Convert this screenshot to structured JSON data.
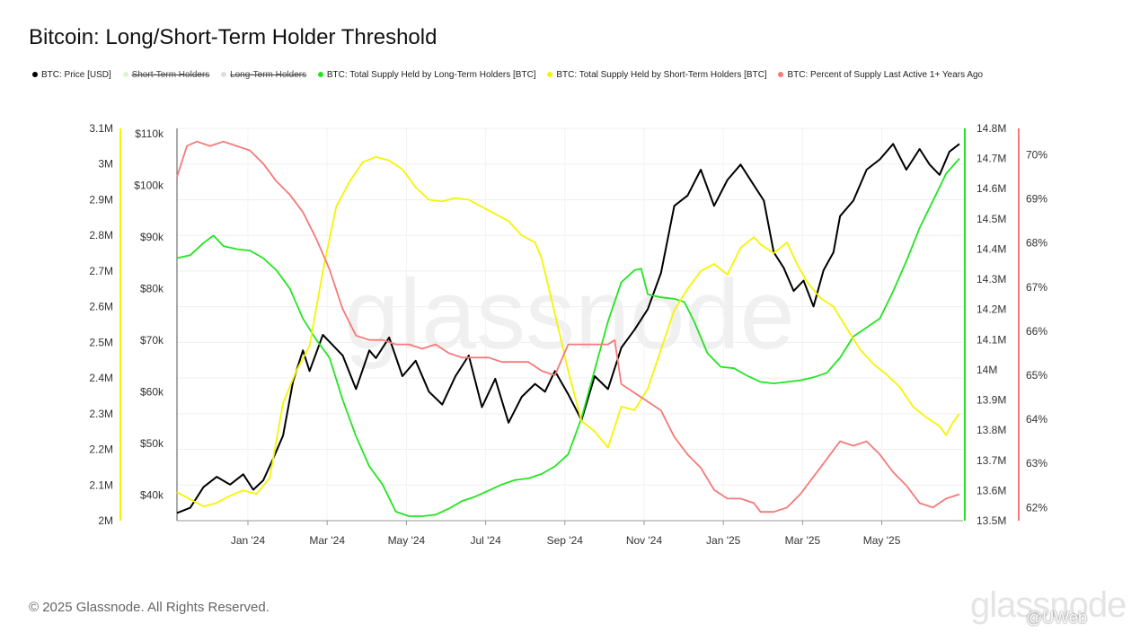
{
  "title": "Bitcoin: Long/Short-Term Holder Threshold",
  "footer": "© 2025 Glassnode. All Rights Reserved.",
  "brand_watermark": "glassnode",
  "uweb_badge": "@UWeb",
  "legend": [
    {
      "label": "BTC: Price [USD]",
      "color": "#000000",
      "active": true
    },
    {
      "label": "Short-Term Holders",
      "color": "#d8f5cc",
      "active": false
    },
    {
      "label": "Long-Term Holders",
      "color": "#dddddd",
      "active": false
    },
    {
      "label": "BTC: Total Supply Held by Long-Term Holders [BTC]",
      "color": "#22e522",
      "active": true
    },
    {
      "label": "BTC: Total Supply Held by Short-Term Holders [BTC]",
      "color": "#f5f500",
      "active": true
    },
    {
      "label": "BTC: Percent of Supply Last Active 1+ Years Ago",
      "color": "#f47a7a",
      "active": true
    }
  ],
  "chart_data": {
    "type": "line",
    "x_ticks": [
      "Jan '24",
      "Mar '24",
      "May '24",
      "Jul '24",
      "Sep '24",
      "Nov '24",
      "Jan '25",
      "Mar '25",
      "May '25"
    ],
    "axes": {
      "sth_supply_btc": {
        "ticks": [
          "2M",
          "2.1M",
          "2.2M",
          "2.3M",
          "2.4M",
          "2.5M",
          "2.6M",
          "2.7M",
          "2.8M",
          "2.9M",
          "3M",
          "3.1M"
        ],
        "range": [
          2000000,
          3100000
        ],
        "color": "#f5f500"
      },
      "price_usd": {
        "ticks": [
          "$40k",
          "$50k",
          "$60k",
          "$70k",
          "$80k",
          "$90k",
          "$100k",
          "$110k"
        ],
        "range": [
          35000,
          111000
        ],
        "color": "#000000"
      },
      "lth_supply_btc": {
        "ticks": [
          "13.5M",
          "13.6M",
          "13.7M",
          "13.8M",
          "13.9M",
          "14M",
          "14.1M",
          "14.2M",
          "14.3M",
          "14.4M",
          "14.5M",
          "14.6M",
          "14.7M",
          "14.8M"
        ],
        "range": [
          13500000,
          14800000
        ],
        "color": "#22e522"
      },
      "pct_1y_active": {
        "ticks": [
          "62%",
          "63%",
          "64%",
          "65%",
          "66%",
          "67%",
          "68%",
          "69%",
          "70%"
        ],
        "range": [
          61.7,
          70.6
        ],
        "color": "#f47a7a"
      }
    },
    "series": [
      {
        "name": "BTC: Price [USD]",
        "axis": "price_usd",
        "color": "#000000",
        "points": [
          [
            0,
            36500
          ],
          [
            0.02,
            37500
          ],
          [
            0.04,
            41500
          ],
          [
            0.06,
            43500
          ],
          [
            0.08,
            42000
          ],
          [
            0.1,
            44000
          ],
          [
            0.115,
            41000
          ],
          [
            0.13,
            42800
          ],
          [
            0.145,
            47000
          ],
          [
            0.16,
            51500
          ],
          [
            0.175,
            62000
          ],
          [
            0.19,
            68000
          ],
          [
            0.2,
            64000
          ],
          [
            0.22,
            71000
          ],
          [
            0.25,
            67000
          ],
          [
            0.27,
            60500
          ],
          [
            0.29,
            68000
          ],
          [
            0.3,
            66500
          ],
          [
            0.32,
            70500
          ],
          [
            0.34,
            63000
          ],
          [
            0.36,
            66000
          ],
          [
            0.38,
            60000
          ],
          [
            0.4,
            57500
          ],
          [
            0.42,
            63000
          ],
          [
            0.44,
            67000
          ],
          [
            0.46,
            57000
          ],
          [
            0.48,
            62500
          ],
          [
            0.5,
            54000
          ],
          [
            0.52,
            59000
          ],
          [
            0.54,
            61500
          ],
          [
            0.555,
            60000
          ],
          [
            0.57,
            64000
          ],
          [
            0.59,
            59500
          ],
          [
            0.61,
            54500
          ],
          [
            0.63,
            63000
          ],
          [
            0.65,
            60500
          ],
          [
            0.67,
            68500
          ],
          [
            0.69,
            72000
          ],
          [
            0.71,
            76000
          ],
          [
            0.73,
            83000
          ],
          [
            0.75,
            96000
          ],
          [
            0.77,
            98000
          ],
          [
            0.79,
            103000
          ],
          [
            0.81,
            96000
          ],
          [
            0.83,
            101000
          ],
          [
            0.85,
            104000
          ],
          [
            0.87,
            100000
          ],
          [
            0.885,
            97000
          ],
          [
            0.9,
            87000
          ],
          [
            0.915,
            84000
          ],
          [
            0.93,
            79500
          ],
          [
            0.945,
            81500
          ],
          [
            0.96,
            76500
          ],
          [
            0.975,
            83500
          ],
          [
            0.99,
            87000
          ],
          [
            1.0,
            94000
          ],
          [
            1.02,
            97000
          ],
          [
            1.04,
            103000
          ],
          [
            1.06,
            105000
          ],
          [
            1.08,
            108000
          ],
          [
            1.1,
            103000
          ],
          [
            1.12,
            107000
          ],
          [
            1.135,
            104000
          ],
          [
            1.15,
            102000
          ],
          [
            1.165,
            106500
          ],
          [
            1.18,
            108000
          ]
        ]
      },
      {
        "name": "BTC: Total Supply Held by Long-Term Holders [BTC]",
        "axis": "lth_supply_btc",
        "color": "#22e522",
        "points": [
          [
            0,
            14370000
          ],
          [
            0.02,
            14380000
          ],
          [
            0.04,
            14420000
          ],
          [
            0.055,
            14445000
          ],
          [
            0.07,
            14410000
          ],
          [
            0.09,
            14400000
          ],
          [
            0.11,
            14395000
          ],
          [
            0.13,
            14370000
          ],
          [
            0.15,
            14330000
          ],
          [
            0.17,
            14270000
          ],
          [
            0.19,
            14170000
          ],
          [
            0.21,
            14100000
          ],
          [
            0.23,
            14040000
          ],
          [
            0.25,
            13900000
          ],
          [
            0.27,
            13780000
          ],
          [
            0.29,
            13680000
          ],
          [
            0.31,
            13620000
          ],
          [
            0.33,
            13530000
          ],
          [
            0.35,
            13515000
          ],
          [
            0.37,
            13515000
          ],
          [
            0.39,
            13520000
          ],
          [
            0.41,
            13540000
          ],
          [
            0.43,
            13565000
          ],
          [
            0.45,
            13580000
          ],
          [
            0.47,
            13600000
          ],
          [
            0.49,
            13620000
          ],
          [
            0.51,
            13635000
          ],
          [
            0.53,
            13640000
          ],
          [
            0.55,
            13655000
          ],
          [
            0.57,
            13680000
          ],
          [
            0.59,
            13720000
          ],
          [
            0.61,
            13840000
          ],
          [
            0.63,
            14000000
          ],
          [
            0.65,
            14160000
          ],
          [
            0.67,
            14290000
          ],
          [
            0.69,
            14330000
          ],
          [
            0.7,
            14335000
          ],
          [
            0.71,
            14250000
          ],
          [
            0.73,
            14240000
          ],
          [
            0.75,
            14235000
          ],
          [
            0.765,
            14225000
          ],
          [
            0.78,
            14160000
          ],
          [
            0.8,
            14055000
          ],
          [
            0.82,
            14010000
          ],
          [
            0.84,
            14005000
          ],
          [
            0.86,
            13980000
          ],
          [
            0.88,
            13960000
          ],
          [
            0.9,
            13955000
          ],
          [
            0.92,
            13960000
          ],
          [
            0.94,
            13965000
          ],
          [
            0.96,
            13975000
          ],
          [
            0.98,
            13990000
          ],
          [
            1.0,
            14040000
          ],
          [
            1.02,
            14110000
          ],
          [
            1.04,
            14140000
          ],
          [
            1.06,
            14170000
          ],
          [
            1.08,
            14260000
          ],
          [
            1.1,
            14360000
          ],
          [
            1.12,
            14470000
          ],
          [
            1.14,
            14560000
          ],
          [
            1.16,
            14650000
          ],
          [
            1.18,
            14700000
          ]
        ]
      },
      {
        "name": "BTC: Total Supply Held by Short-Term Holders [BTC]",
        "axis": "sth_supply_btc",
        "color": "#f5f500",
        "points": [
          [
            0,
            2080000
          ],
          [
            0.02,
            2060000
          ],
          [
            0.04,
            2040000
          ],
          [
            0.06,
            2050000
          ],
          [
            0.08,
            2070000
          ],
          [
            0.1,
            2085000
          ],
          [
            0.12,
            2075000
          ],
          [
            0.14,
            2120000
          ],
          [
            0.16,
            2330000
          ],
          [
            0.18,
            2420000
          ],
          [
            0.2,
            2490000
          ],
          [
            0.22,
            2700000
          ],
          [
            0.24,
            2880000
          ],
          [
            0.26,
            2950000
          ],
          [
            0.28,
            3005000
          ],
          [
            0.3,
            3020000
          ],
          [
            0.32,
            3010000
          ],
          [
            0.34,
            2985000
          ],
          [
            0.36,
            2935000
          ],
          [
            0.38,
            2900000
          ],
          [
            0.4,
            2895000
          ],
          [
            0.42,
            2905000
          ],
          [
            0.44,
            2900000
          ],
          [
            0.46,
            2880000
          ],
          [
            0.48,
            2860000
          ],
          [
            0.5,
            2840000
          ],
          [
            0.52,
            2800000
          ],
          [
            0.54,
            2780000
          ],
          [
            0.55,
            2735000
          ],
          [
            0.57,
            2580000
          ],
          [
            0.59,
            2420000
          ],
          [
            0.61,
            2280000
          ],
          [
            0.63,
            2250000
          ],
          [
            0.65,
            2205000
          ],
          [
            0.67,
            2320000
          ],
          [
            0.69,
            2310000
          ],
          [
            0.71,
            2370000
          ],
          [
            0.73,
            2480000
          ],
          [
            0.75,
            2590000
          ],
          [
            0.77,
            2650000
          ],
          [
            0.79,
            2700000
          ],
          [
            0.81,
            2720000
          ],
          [
            0.83,
            2690000
          ],
          [
            0.85,
            2765000
          ],
          [
            0.87,
            2795000
          ],
          [
            0.88,
            2775000
          ],
          [
            0.9,
            2750000
          ],
          [
            0.92,
            2780000
          ],
          [
            0.935,
            2720000
          ],
          [
            0.95,
            2670000
          ],
          [
            0.97,
            2625000
          ],
          [
            0.99,
            2600000
          ],
          [
            1.01,
            2540000
          ],
          [
            1.03,
            2480000
          ],
          [
            1.05,
            2440000
          ],
          [
            1.07,
            2410000
          ],
          [
            1.09,
            2375000
          ],
          [
            1.11,
            2320000
          ],
          [
            1.13,
            2290000
          ],
          [
            1.15,
            2265000
          ],
          [
            1.16,
            2240000
          ],
          [
            1.17,
            2275000
          ],
          [
            1.18,
            2300000
          ]
        ]
      },
      {
        "name": "BTC: Percent of Supply Last Active 1+ Years Ago",
        "axis": "pct_1y_active",
        "color": "#f47a7a",
        "points": [
          [
            0,
            69.5
          ],
          [
            0.015,
            70.2
          ],
          [
            0.03,
            70.3
          ],
          [
            0.05,
            70.2
          ],
          [
            0.07,
            70.3
          ],
          [
            0.09,
            70.2
          ],
          [
            0.11,
            70.1
          ],
          [
            0.13,
            69.8
          ],
          [
            0.15,
            69.4
          ],
          [
            0.17,
            69.1
          ],
          [
            0.19,
            68.7
          ],
          [
            0.21,
            68.1
          ],
          [
            0.23,
            67.4
          ],
          [
            0.25,
            66.5
          ],
          [
            0.27,
            65.9
          ],
          [
            0.29,
            65.8
          ],
          [
            0.31,
            65.8
          ],
          [
            0.33,
            65.7
          ],
          [
            0.35,
            65.7
          ],
          [
            0.37,
            65.6
          ],
          [
            0.39,
            65.7
          ],
          [
            0.41,
            65.5
          ],
          [
            0.43,
            65.4
          ],
          [
            0.45,
            65.4
          ],
          [
            0.47,
            65.4
          ],
          [
            0.49,
            65.3
          ],
          [
            0.51,
            65.3
          ],
          [
            0.53,
            65.3
          ],
          [
            0.55,
            65.1
          ],
          [
            0.57,
            65.0
          ],
          [
            0.59,
            65.7
          ],
          [
            0.61,
            65.7
          ],
          [
            0.63,
            65.7
          ],
          [
            0.65,
            65.7
          ],
          [
            0.66,
            65.8
          ],
          [
            0.665,
            65.3
          ],
          [
            0.67,
            64.8
          ],
          [
            0.69,
            64.6
          ],
          [
            0.71,
            64.4
          ],
          [
            0.73,
            64.2
          ],
          [
            0.75,
            63.6
          ],
          [
            0.77,
            63.2
          ],
          [
            0.79,
            62.9
          ],
          [
            0.81,
            62.4
          ],
          [
            0.83,
            62.2
          ],
          [
            0.85,
            62.2
          ],
          [
            0.87,
            62.1
          ],
          [
            0.88,
            61.9
          ],
          [
            0.9,
            61.9
          ],
          [
            0.92,
            62.0
          ],
          [
            0.94,
            62.3
          ],
          [
            0.96,
            62.7
          ],
          [
            0.98,
            63.1
          ],
          [
            1.0,
            63.5
          ],
          [
            1.02,
            63.4
          ],
          [
            1.04,
            63.5
          ],
          [
            1.06,
            63.2
          ],
          [
            1.08,
            62.8
          ],
          [
            1.1,
            62.5
          ],
          [
            1.12,
            62.1
          ],
          [
            1.14,
            62.0
          ],
          [
            1.16,
            62.2
          ],
          [
            1.18,
            62.3
          ]
        ]
      }
    ],
    "grid": true
  }
}
